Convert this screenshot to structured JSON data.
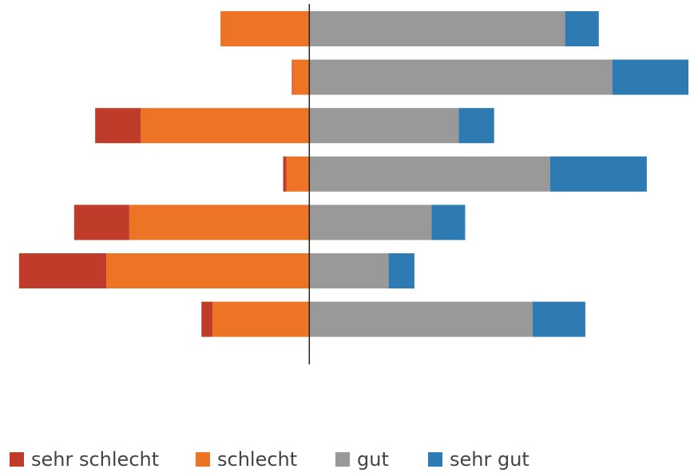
{
  "chart_data": {
    "type": "diverging_bar",
    "categories": [
      null,
      null,
      null,
      null,
      null,
      null,
      null
    ],
    "series": [
      {
        "name": "sehr schlecht",
        "color": "#bf3b2a",
        "side": "negative",
        "values": [
          0,
          0.2,
          11.5,
          0.8,
          13.9,
          22,
          2.8
        ]
      },
      {
        "name": "schlecht",
        "color": "#ed7325",
        "side": "negative",
        "values": [
          22.4,
          4.2,
          42.5,
          5.8,
          45.4,
          51.2,
          24.4
        ]
      },
      {
        "name": "gut",
        "color": "#999999",
        "side": "positive",
        "values": [
          64.5,
          76.4,
          37.7,
          60.7,
          30.8,
          20,
          56.3
        ]
      },
      {
        "name": "sehr gut",
        "color": "#2e7bb4",
        "side": "positive",
        "values": [
          8.5,
          19.2,
          8.9,
          24.4,
          8.5,
          6.5,
          13.3
        ]
      }
    ],
    "xlim": [
      -78,
      96
    ]
  }
}
